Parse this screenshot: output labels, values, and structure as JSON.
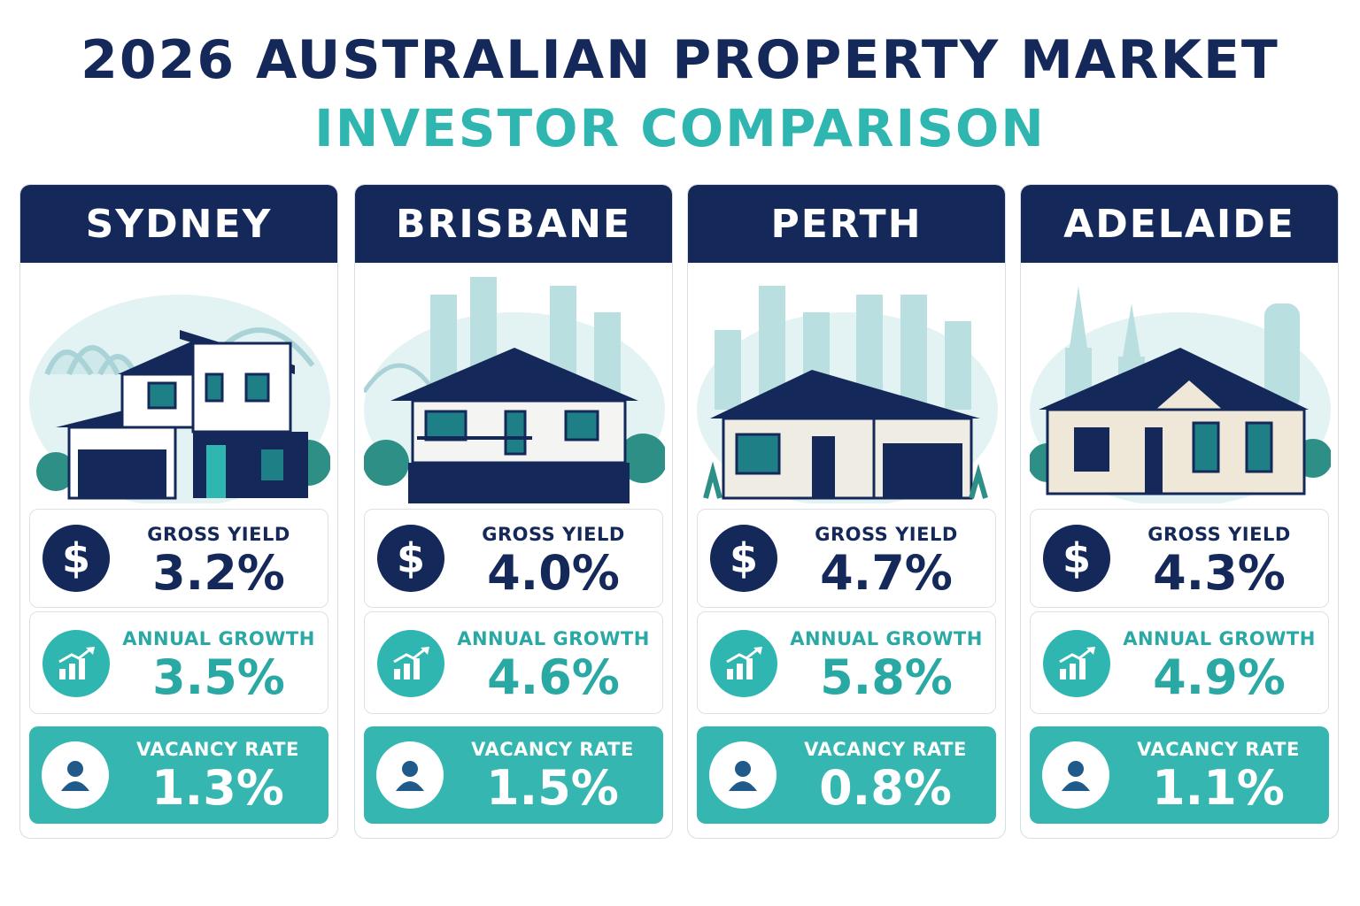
{
  "title": {
    "line1": "2026 AUSTRALIAN PROPERTY MARKET",
    "line2": "INVESTOR COMPARISON"
  },
  "colors": {
    "navy": "#14285a",
    "teal": "#2fb6b0",
    "vacancy_panel": "#36b6b0"
  },
  "cities": [
    {
      "name": "SYDNEY",
      "gross_yield": {
        "label": "GROSS YIELD",
        "value": "3.2%",
        "icon": "dollar-icon"
      },
      "annual_growth": {
        "label": "ANNUAL GROWTH",
        "value": "3.5%",
        "icon": "growth-chart-icon"
      },
      "vacancy_rate": {
        "label": "VACANCY RATE",
        "value": "1.3%",
        "icon": "person-icon"
      }
    },
    {
      "name": "BRISBANE",
      "gross_yield": {
        "label": "GROSS YIELD",
        "value": "4.0%",
        "icon": "dollar-icon"
      },
      "annual_growth": {
        "label": "ANNUAL GROWTH",
        "value": "4.6%",
        "icon": "growth-chart-icon"
      },
      "vacancy_rate": {
        "label": "VACANCY RATE",
        "value": "1.5%",
        "icon": "person-icon"
      }
    },
    {
      "name": "PERTH",
      "gross_yield": {
        "label": "GROSS YIELD",
        "value": "4.7%",
        "icon": "dollar-icon"
      },
      "annual_growth": {
        "label": "ANNUAL GROWTH",
        "value": "5.8%",
        "icon": "growth-chart-icon"
      },
      "vacancy_rate": {
        "label": "VACANCY RATE",
        "value": "0.8%",
        "icon": "person-icon"
      }
    },
    {
      "name": "ADELAIDE",
      "gross_yield": {
        "label": "GROSS YIELD",
        "value": "4.3%",
        "icon": "dollar-icon"
      },
      "annual_growth": {
        "label": "ANNUAL GROWTH",
        "value": "4.9%",
        "icon": "growth-chart-icon"
      },
      "vacancy_rate": {
        "label": "VACANCY RATE",
        "value": "1.1%",
        "icon": "person-icon"
      }
    }
  ]
}
